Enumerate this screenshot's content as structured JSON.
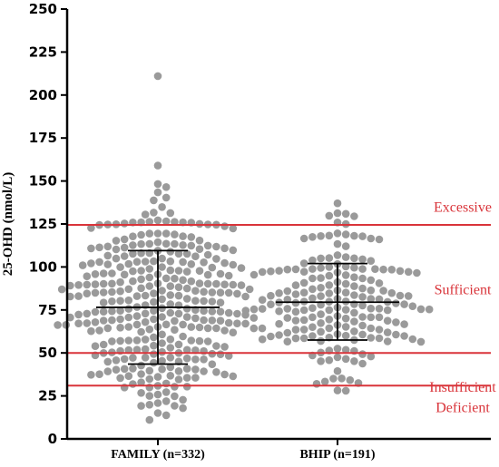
{
  "chart_data": {
    "type": "scatter",
    "subtype": "dot-plot with mean and SD error bars",
    "ylabel": "25-OHD (nmol/L)",
    "ylim": [
      0,
      250
    ],
    "yticks": [
      0,
      25,
      50,
      75,
      100,
      125,
      150,
      175,
      200,
      225,
      250
    ],
    "categories": [
      "FAMILY (n=332)",
      "BHIP (n=191)"
    ],
    "groups": [
      {
        "category": "FAMILY (n=332)",
        "n": 332,
        "mean": 76.5,
        "sd_lower": 43.5,
        "sd_upper": 109.5,
        "min": 11,
        "max": 211
      },
      {
        "category": "BHIP (n=191)",
        "n": 191,
        "mean": 79.5,
        "sd_lower": 57.5,
        "sd_upper": 102,
        "min": 28,
        "max": 137
      }
    ],
    "thresholds": [
      {
        "value": 124.5,
        "label": "Excessive"
      },
      {
        "value": 50,
        "label": "Insufficient"
      },
      {
        "value": 31,
        "label": "Deficient"
      }
    ],
    "region_labels": [
      {
        "label": "Excessive"
      },
      {
        "label": "Sufficient"
      },
      {
        "label": "Insufficient"
      },
      {
        "label": "Deficient"
      }
    ],
    "colors": {
      "points": "#9a9a9a",
      "threshold_lines": "#d9343a",
      "error_bars": "#000000",
      "axis": "#000000"
    },
    "grid": false
  }
}
